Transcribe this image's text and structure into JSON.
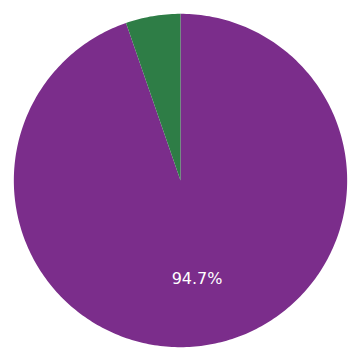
{
  "chart_data": {
    "type": "pie",
    "values": [
      94.7,
      5.3
    ],
    "colors": [
      "#7b2d8b",
      "#2e7d46"
    ],
    "data_labels": true,
    "value_labels": [
      "94.7%",
      null
    ]
  }
}
